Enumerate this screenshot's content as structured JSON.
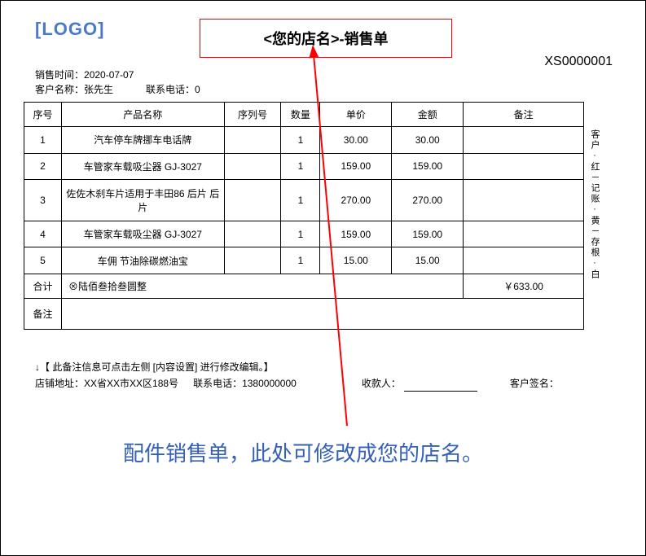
{
  "logo_text": "[LOGO]",
  "title": "<您的店名>-销售单",
  "sales_time_label": "销售时间：",
  "sales_time": "2020-07-07",
  "customer_name_label": "客户名称：",
  "customer_name": "张先生",
  "contact_label": "联系电话：",
  "contact_phone": "0",
  "order_no": "XS0000001",
  "columns": {
    "seq": "序号",
    "name": "产品名称",
    "serial": "序列号",
    "qty": "数量",
    "price": "单价",
    "amount": "金额",
    "remark": "备注"
  },
  "rows": [
    {
      "seq": "1",
      "name": "汽车停车牌挪车电话牌",
      "serial": "",
      "qty": "1",
      "price": "30.00",
      "amount": "30.00",
      "remark": ""
    },
    {
      "seq": "2",
      "name": "车管家车载吸尘器 GJ-3027",
      "serial": "",
      "qty": "1",
      "price": "159.00",
      "amount": "159.00",
      "remark": ""
    },
    {
      "seq": "3",
      "name": "佐佐木刹车片适用于丰田86 后片 后片",
      "serial": "",
      "qty": "1",
      "price": "270.00",
      "amount": "270.00",
      "remark": ""
    },
    {
      "seq": "4",
      "name": "车管家车载吸尘器 GJ-3027",
      "serial": "",
      "qty": "1",
      "price": "159.00",
      "amount": "159.00",
      "remark": ""
    },
    {
      "seq": "5",
      "name": "车佣 节油除碳燃油宝",
      "serial": "",
      "qty": "1",
      "price": "15.00",
      "amount": "15.00",
      "remark": ""
    }
  ],
  "total_label": "合计",
  "total_words": "⊗陆佰叁拾叁圆整",
  "total_amount": "￥633.00",
  "note_row_label": "备注",
  "side_note": "客户·红－记账·黄－存根·白",
  "footer_note": "↓【 此备注信息可点击左侧 [内容设置] 进行修改编辑。】",
  "shop_addr_label": "店铺地址：",
  "shop_addr": "XX省XX市XX区188号",
  "shop_phone_label": "联系电话：",
  "shop_phone": "1380000000",
  "receiver_label": "收款人：",
  "customer_sign_label": "客户签名：",
  "caption": "配件销售单，此处可修改成您的店名。",
  "arrow_color": "#ff0000",
  "colors": {
    "logo": "#4a7ac7",
    "caption": "#3560b8",
    "border": "#000000",
    "title_border": "#ff0000"
  }
}
